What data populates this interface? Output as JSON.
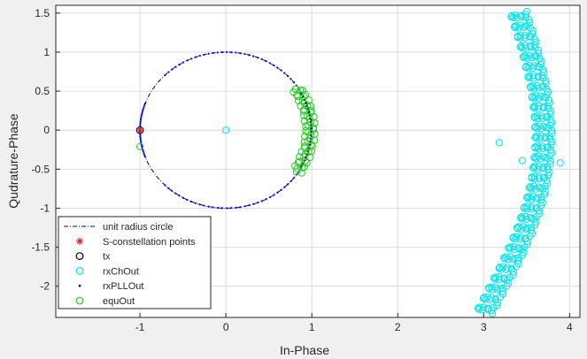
{
  "chart_data": {
    "type": "scatter",
    "xlabel": "In-Phase",
    "ylabel": "Qudrature-Phase",
    "xlim": [
      -1.98,
      4.12
    ],
    "ylim": [
      -2.4,
      1.6
    ],
    "grid": true,
    "legend_position": "bottom-left",
    "xticks": [
      {
        "value": -1,
        "label": "-1"
      },
      {
        "value": 0,
        "label": "0"
      },
      {
        "value": 1,
        "label": "1"
      },
      {
        "value": 2,
        "label": "2"
      },
      {
        "value": 3,
        "label": "3"
      },
      {
        "value": 4,
        "label": "4"
      }
    ],
    "yticks": [
      {
        "value": 1.5,
        "label": "1.5"
      },
      {
        "value": 1,
        "label": "1"
      },
      {
        "value": 0.5,
        "label": "0.5"
      },
      {
        "value": 0,
        "label": "0"
      },
      {
        "value": -0.5,
        "label": "-0.5"
      },
      {
        "value": -1,
        "label": "-1"
      },
      {
        "value": -1.5,
        "label": "-1.5"
      },
      {
        "value": -2,
        "label": "-2"
      }
    ],
    "legend": [
      {
        "label": "unit radius circle",
        "marker": "dashdot-line",
        "color": "#00007f"
      },
      {
        "label": "S-constellation points",
        "marker": "asterisk",
        "color": "#d62728"
      },
      {
        "label": "tx",
        "marker": "circle",
        "color": "#000000"
      },
      {
        "label": "rxChOut",
        "marker": "circle",
        "color": "#00e5ee"
      },
      {
        "label": "rxPLLOut",
        "marker": "dot",
        "color": "#0000ff"
      },
      {
        "label": "equOut",
        "marker": "circle",
        "color": "#22cc22"
      }
    ],
    "series": [
      {
        "name": "unit radius circle",
        "kind": "circle",
        "center": [
          0,
          0
        ],
        "radius": 1
      },
      {
        "name": "S-constellation points",
        "x": [
          -1
        ],
        "y": [
          0
        ]
      },
      {
        "name": "tx",
        "x": [
          -1
        ],
        "y": [
          0
        ]
      },
      {
        "name": "rxChOut",
        "isolated": {
          "x": [
            0,
            3.18,
            3.45,
            3.89
          ],
          "y": [
            0,
            -0.16,
            -0.39,
            -0.42
          ]
        },
        "spiral": {
          "x_start": 3.0,
          "x_end": 3.4,
          "y_start": -2.35,
          "y_end": 1.52,
          "bulge": 0.48,
          "loops": 30,
          "loop_radius": 0.1
        }
      },
      {
        "name": "rxPLLOut",
        "arc": {
          "radius": 1,
          "angle_from_deg": -135,
          "angle_to_deg": 135
        },
        "extra": {
          "x": [
            -1
          ],
          "y": [
            -0.02
          ]
        }
      },
      {
        "name": "equOut",
        "arc": {
          "radius": 0.98,
          "angle_from_deg": -33,
          "angle_to_deg": 33,
          "spread": 0.06
        },
        "extra": {
          "x": [
            -1
          ],
          "y": [
            -0.21
          ]
        }
      }
    ]
  }
}
